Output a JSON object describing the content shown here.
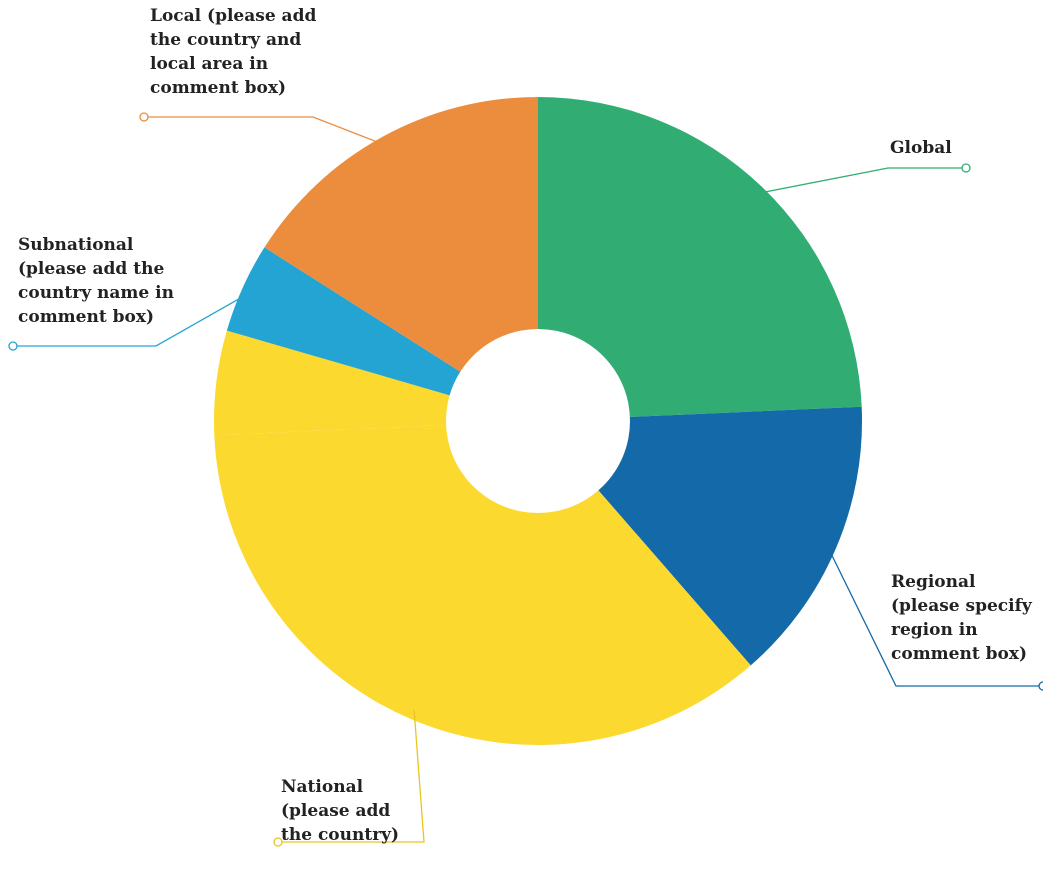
{
  "chart_data": {
    "type": "pie",
    "variant": "donut",
    "title": "",
    "slices": [
      {
        "name": "Global",
        "label_lines": [
          "Global"
        ],
        "value": 24.3,
        "color": "#31AD73"
      },
      {
        "name": "Regional (please specify region in comment box)",
        "label_lines": [
          "Regional",
          "(please specify",
          "region in",
          "comment box)"
        ],
        "value": 14.3,
        "color": "#1469A8"
      },
      {
        "name": "National (please add the country)",
        "label_lines": [
          "National",
          "(please add",
          "the country)"
        ],
        "value": 35.7,
        "color": "#FBD92F"
      },
      {
        "name": "",
        "label_lines": [],
        "value": 5.2,
        "color": "#FBD92F"
      },
      {
        "name": "Subnational (please add the country name in comment box)",
        "label_lines": [
          "Subnational",
          "(please add the",
          "country name in",
          "comment box)"
        ],
        "value": 4.5,
        "color": "#24A4D3"
      },
      {
        "name": "Local (please add the country and local area in comment box)",
        "label_lines": [
          "Local (please add",
          "the country and",
          "local area in",
          "comment box)"
        ],
        "value": 16.0,
        "color": "#EB8D3C"
      }
    ],
    "legend": "none",
    "labels": "external with leader lines"
  }
}
